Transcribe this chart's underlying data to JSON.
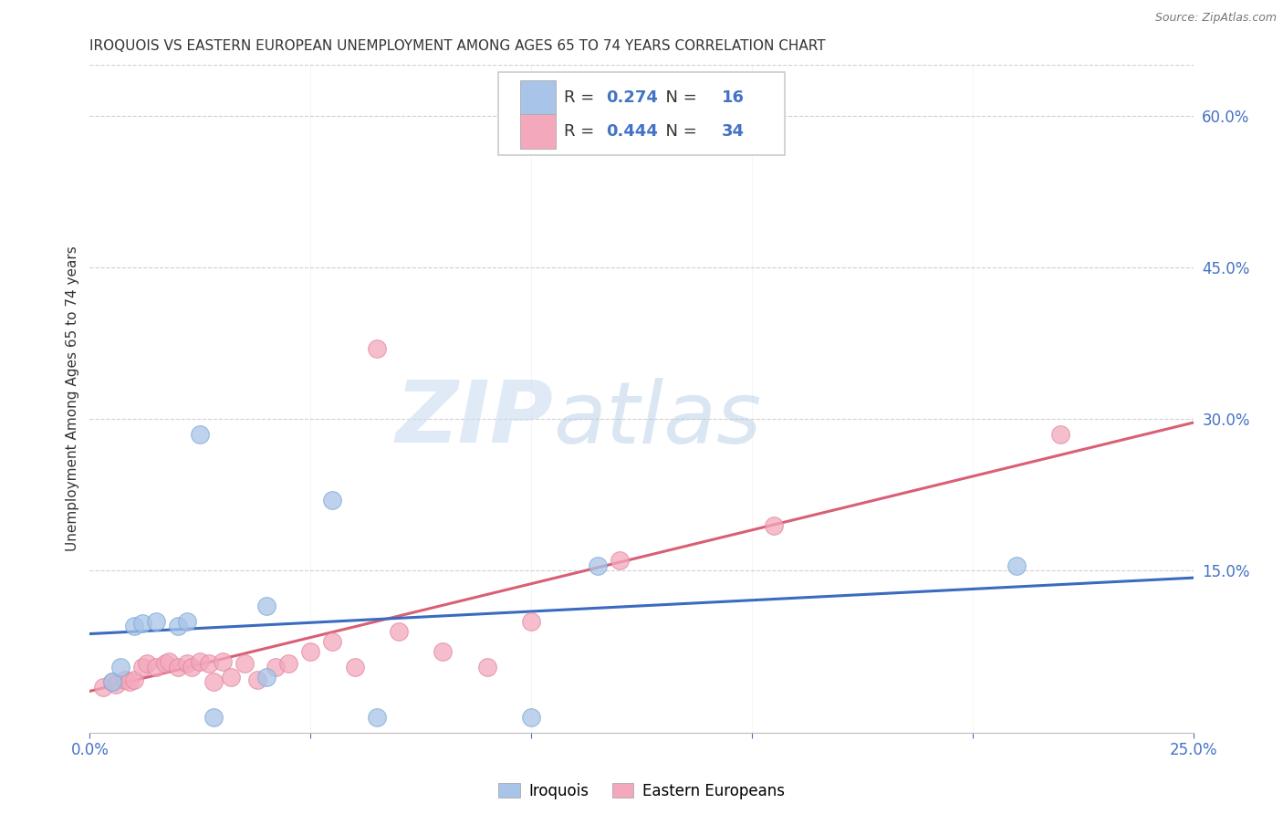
{
  "title": "IROQUOIS VS EASTERN EUROPEAN UNEMPLOYMENT AMONG AGES 65 TO 74 YEARS CORRELATION CHART",
  "source": "Source: ZipAtlas.com",
  "ylabel": "Unemployment Among Ages 65 to 74 years",
  "legend_label1": "Iroquois",
  "legend_label2": "Eastern Europeans",
  "R1": 0.274,
  "N1": 16,
  "R2": 0.444,
  "N2": 34,
  "color1": "#a8c4e8",
  "color2": "#f4a8bc",
  "line_color1": "#3a6bbf",
  "line_color2": "#d95f75",
  "axis_color": "#4472c4",
  "text_color": "#333333",
  "xlim": [
    0.0,
    0.25
  ],
  "ylim": [
    -0.01,
    0.65
  ],
  "xticks": [
    0.0,
    0.05,
    0.1,
    0.15,
    0.2,
    0.25
  ],
  "yticks_right": [
    0.15,
    0.3,
    0.45,
    0.6
  ],
  "ytick_right_labels": [
    "15.0%",
    "30.0%",
    "45.0%",
    "60.0%"
  ],
  "iroquois_x": [
    0.005,
    0.007,
    0.01,
    0.012,
    0.015,
    0.02,
    0.022,
    0.025,
    0.028,
    0.04,
    0.04,
    0.055,
    0.065,
    0.1,
    0.115,
    0.21
  ],
  "iroquois_y": [
    0.04,
    0.055,
    0.095,
    0.098,
    0.1,
    0.095,
    0.1,
    0.285,
    0.005,
    0.045,
    0.115,
    0.22,
    0.005,
    0.005,
    0.155,
    0.155
  ],
  "eastern_x": [
    0.003,
    0.005,
    0.006,
    0.008,
    0.009,
    0.01,
    0.012,
    0.013,
    0.015,
    0.017,
    0.018,
    0.02,
    0.022,
    0.023,
    0.025,
    0.027,
    0.028,
    0.03,
    0.032,
    0.035,
    0.038,
    0.042,
    0.045,
    0.05,
    0.055,
    0.06,
    0.065,
    0.07,
    0.08,
    0.09,
    0.1,
    0.12,
    0.155,
    0.22
  ],
  "eastern_y": [
    0.035,
    0.04,
    0.038,
    0.042,
    0.04,
    0.042,
    0.055,
    0.058,
    0.055,
    0.058,
    0.06,
    0.055,
    0.058,
    0.055,
    0.06,
    0.058,
    0.04,
    0.06,
    0.045,
    0.058,
    0.042,
    0.055,
    0.058,
    0.07,
    0.08,
    0.055,
    0.37,
    0.09,
    0.07,
    0.055,
    0.1,
    0.16,
    0.195,
    0.285
  ],
  "watermark_zip": "ZIP",
  "watermark_atlas": "atlas",
  "background_color": "#ffffff",
  "grid_color": "#d0d0d0"
}
